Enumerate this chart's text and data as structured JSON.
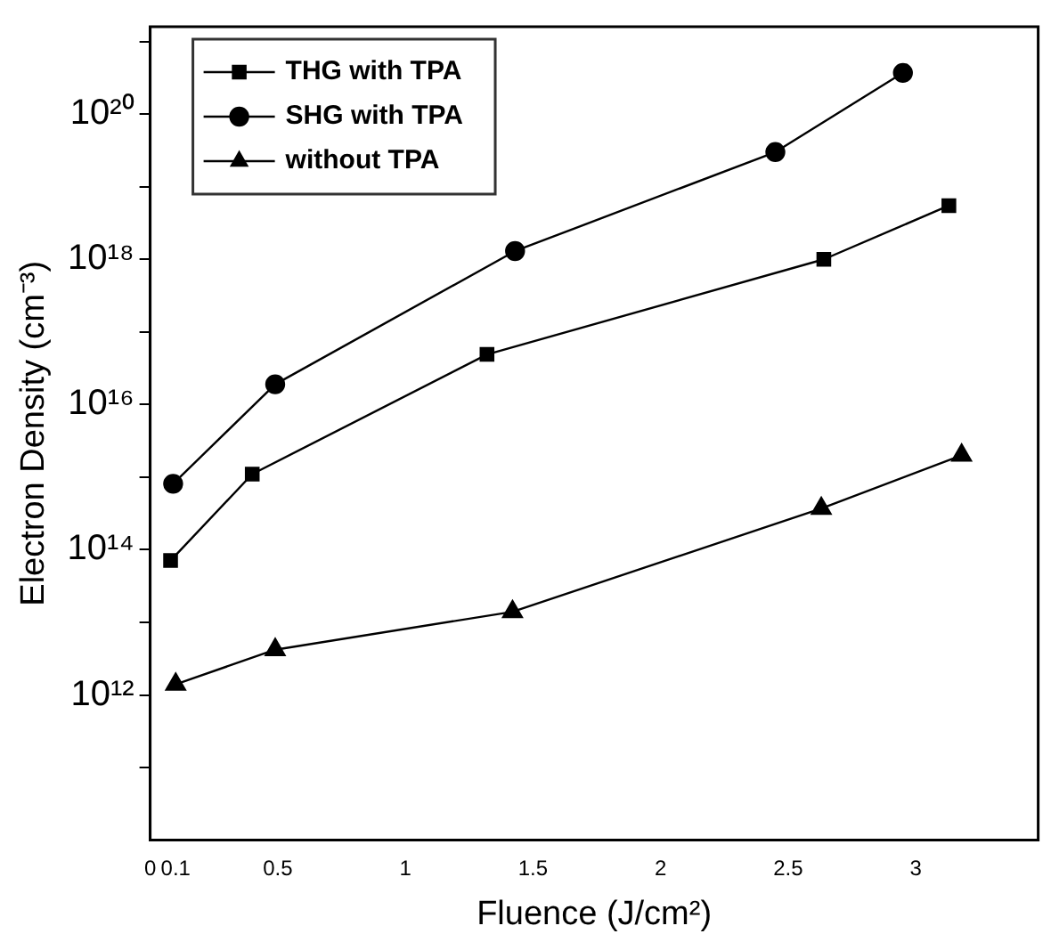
{
  "chart_data": {
    "type": "line",
    "xlabel": "Fluence (J/cm²)",
    "ylabel": "Electron Density (cm⁻³)",
    "series": [
      {
        "name": "THG with TPA",
        "color": "#000000",
        "marker": "square",
        "x": [
          0.08,
          0.4,
          1.32,
          2.64,
          3.13
        ],
        "values": [
          71000000000000.0,
          1100000000000000.0,
          4.9e+16,
          1e+18,
          5.5e+18
        ]
      },
      {
        "name": "SHG with TPA",
        "color": "#000000",
        "marker": "circle",
        "x": [
          0.09,
          0.49,
          1.43,
          2.45,
          2.95
        ],
        "values": [
          810000000000000.0,
          1.9e+16,
          1.3e+18,
          3e+19,
          3.7e+20
        ]
      },
      {
        "name": "without TPA",
        "color": "#000000",
        "marker": "triangle",
        "x": [
          0.1,
          0.49,
          1.42,
          2.63,
          3.18
        ],
        "values": [
          1400000000000.0,
          4200000000000.0,
          14000000000000.0,
          370000000000000.0,
          2000000000000000.0
        ]
      }
    ],
    "log": "y",
    "xlim": [
      0,
      3.48
    ],
    "ylim": [
      10000000000.0,
      1.6e+21
    ],
    "xticks": [
      0,
      0.1,
      0.5,
      1,
      1.5,
      2,
      2.5,
      3
    ],
    "yticks": [
      {
        "value": 100000000000.0,
        "label": null
      },
      {
        "value": 1000000000000.0,
        "label": "10¹²"
      },
      {
        "value": 10000000000000.0,
        "label": null
      },
      {
        "value": 100000000000000.0,
        "label": "10¹⁴"
      },
      {
        "value": 1000000000000000.0,
        "label": null
      },
      {
        "value": 1e+16,
        "label": "10¹⁶"
      },
      {
        "value": 1e+17,
        "label": null
      },
      {
        "value": 1e+18,
        "label": "10¹⁸"
      },
      {
        "value": 1e+19,
        "label": null
      },
      {
        "value": 1e+20,
        "label": "10²⁰"
      },
      {
        "value": 1e+21,
        "label": null
      }
    ],
    "grid": false,
    "legend": "top left",
    "line_style": "solid"
  }
}
